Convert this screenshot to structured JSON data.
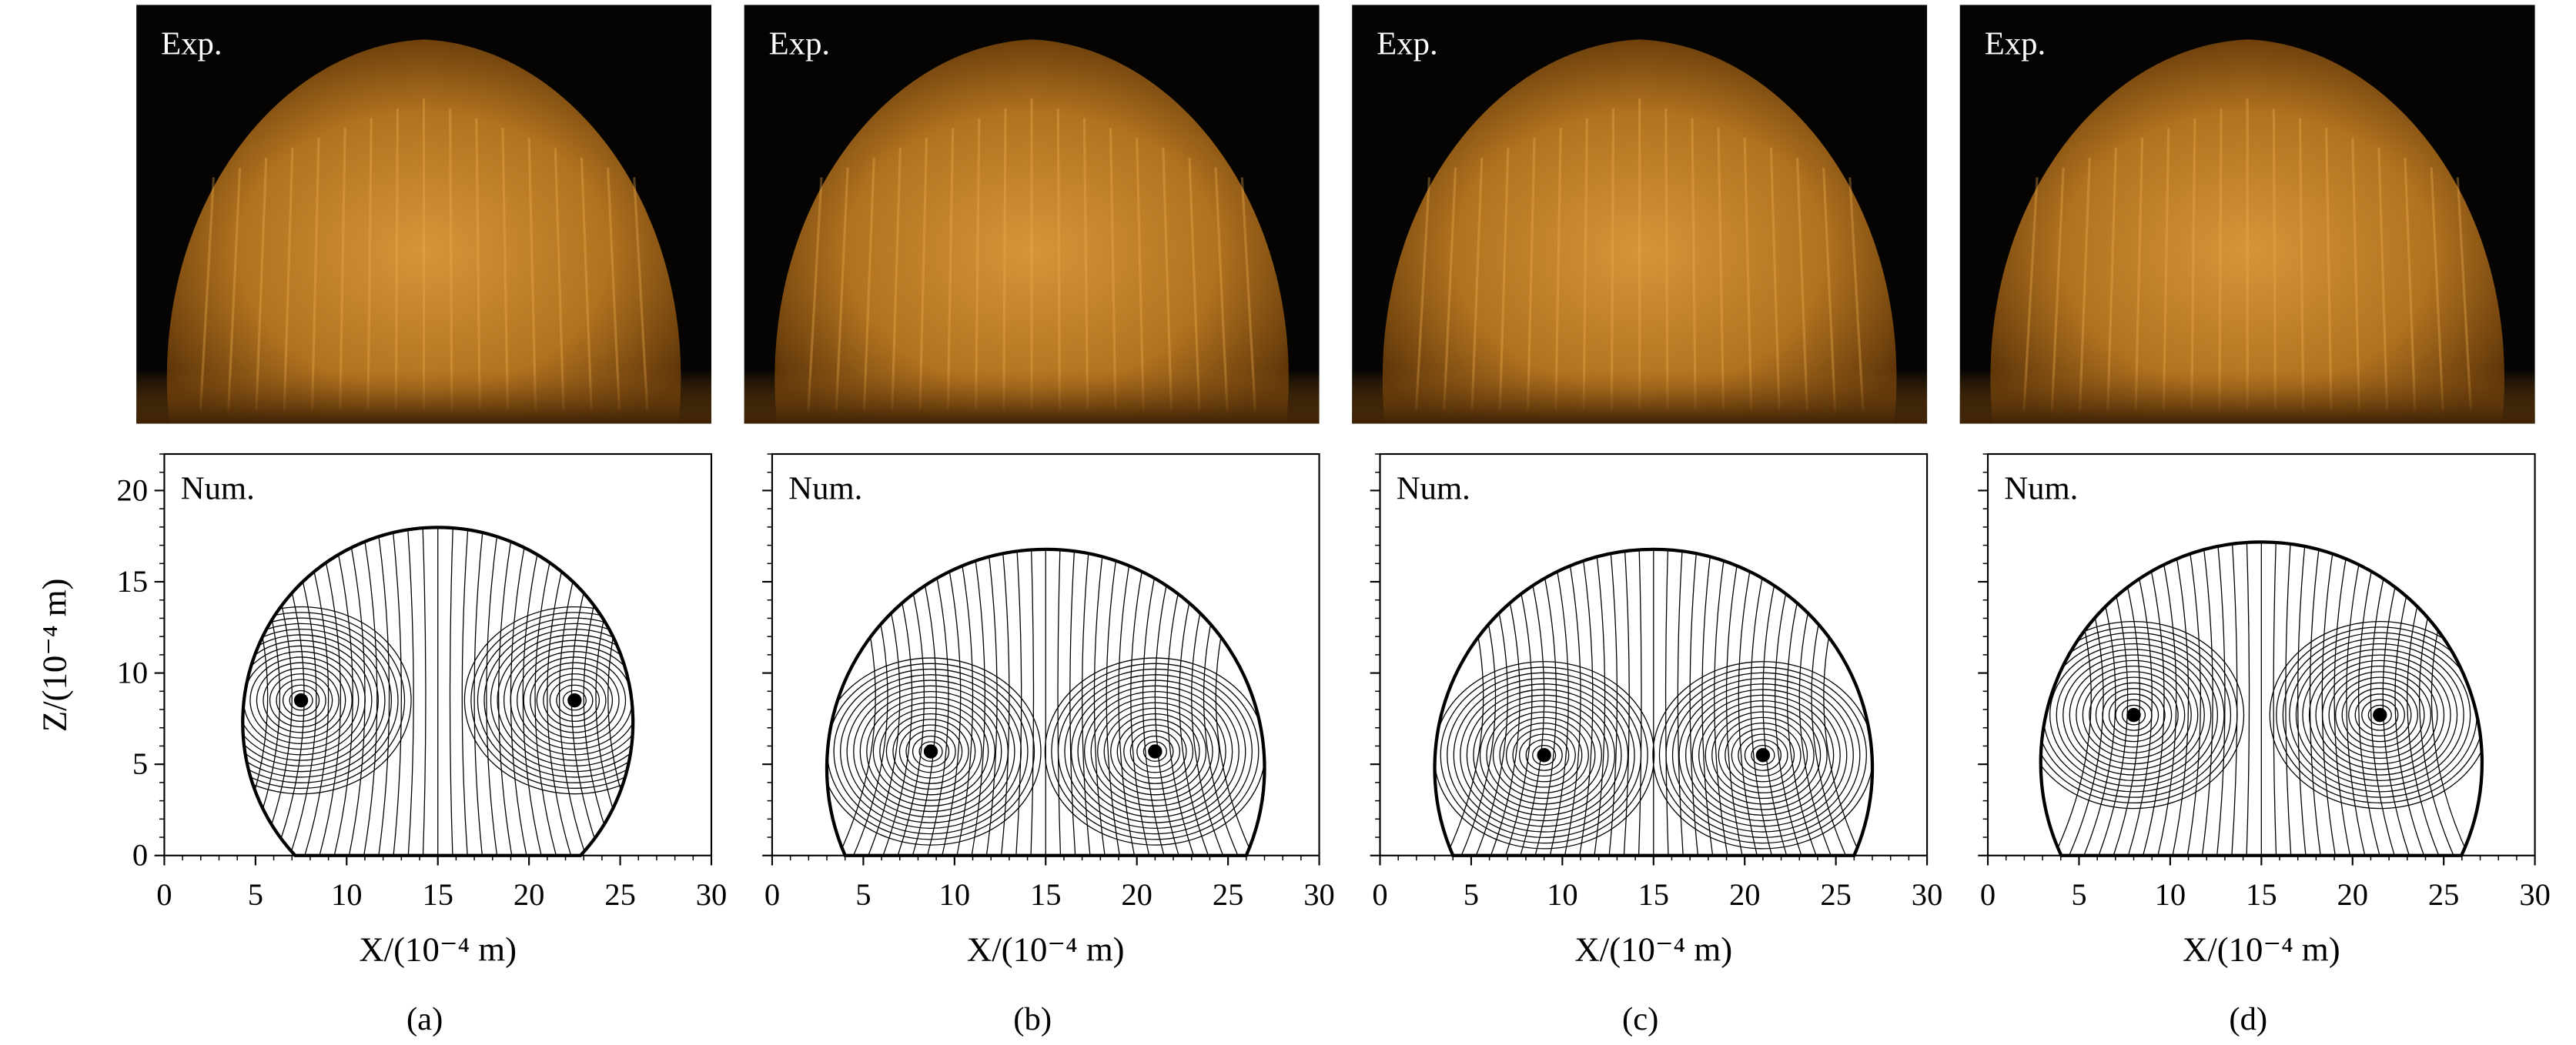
{
  "panels": [
    {
      "exp_label": "Exp.",
      "num_label": "Num.",
      "xlabel": "X/(10⁻⁴ m)",
      "caption": "(a)"
    },
    {
      "exp_label": "Exp.",
      "num_label": "Num.",
      "xlabel": "X/(10⁻⁴ m)",
      "caption": "(b)"
    },
    {
      "exp_label": "Exp.",
      "num_label": "Num.",
      "xlabel": "X/(10⁻⁴ m)",
      "caption": "(c)"
    },
    {
      "exp_label": "Exp.",
      "num_label": "Num.",
      "xlabel": "X/(10⁻⁴ m)",
      "caption": "(d)"
    }
  ],
  "axes": {
    "ylabel": "Z/(10⁻⁴ m)",
    "xlim": [
      0,
      30
    ],
    "ylim": [
      0,
      22
    ],
    "xticks": [
      0,
      5,
      10,
      15,
      20,
      25,
      30
    ],
    "yticks": [
      0,
      5,
      10,
      15,
      20
    ]
  }
}
